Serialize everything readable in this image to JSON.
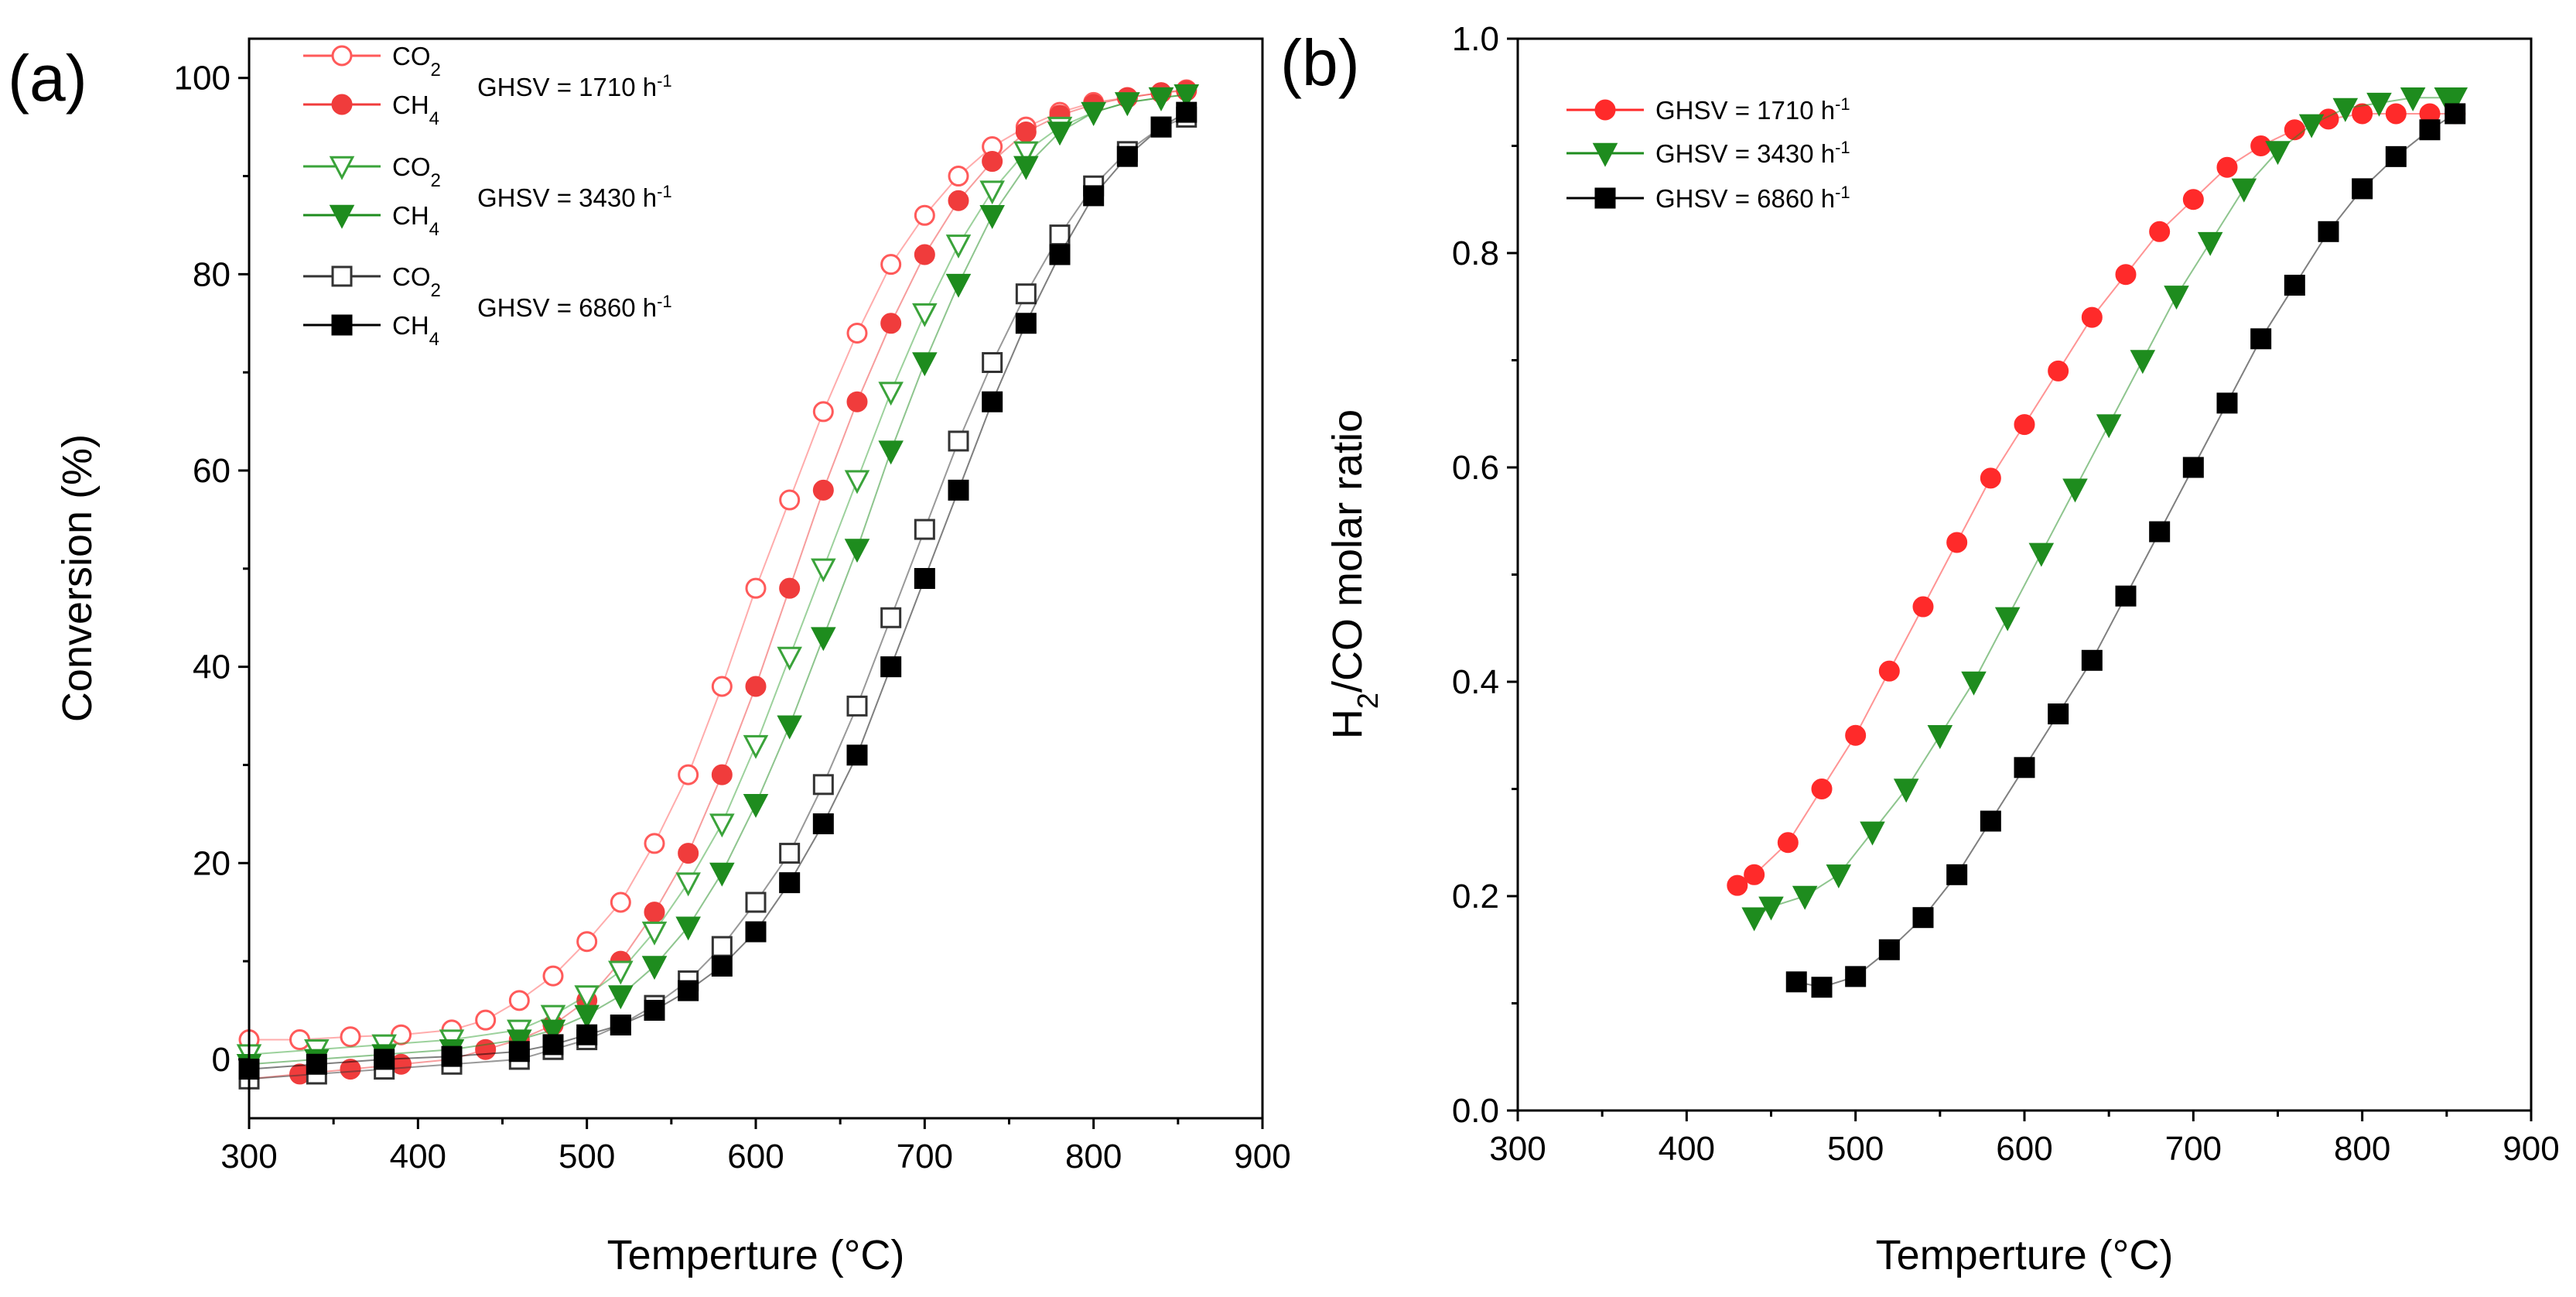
{
  "chart_data": [
    {
      "type": "scatter",
      "panel_label": "(a)",
      "xlabel": "Temperture (°C)",
      "ylabel": "Conversion (%)",
      "xlim": [
        300,
        900
      ],
      "ylim": [
        -6,
        104
      ],
      "xticks": [
        300,
        400,
        500,
        600,
        700,
        800,
        900
      ],
      "yticks": [
        0,
        20,
        40,
        60,
        80,
        100
      ],
      "legend_position": "top-left",
      "legend_groups": [
        {
          "label": "GHSV = 1710 h",
          "sup": "-1",
          "series": [
            0,
            1
          ]
        },
        {
          "label": "GHSV = 3430 h",
          "sup": "-1",
          "series": [
            2,
            3
          ]
        },
        {
          "label": "GHSV = 6860 h",
          "sup": "-1",
          "series": [
            4,
            5
          ]
        }
      ],
      "series": [
        {
          "name": "CO",
          "sub": "2",
          "color": "#ff5a5a",
          "marker": "circle",
          "filled": false,
          "x": [
            300,
            330,
            360,
            390,
            420,
            440,
            460,
            480,
            500,
            520,
            540,
            560,
            580,
            600,
            620,
            640,
            660,
            680,
            700,
            720,
            740,
            760,
            780,
            800,
            820,
            840,
            855
          ],
          "y": [
            2,
            2,
            2.3,
            2.5,
            3,
            4,
            6,
            8.5,
            12,
            16,
            22,
            29,
            38,
            48,
            57,
            66,
            74,
            81,
            86,
            90,
            93,
            95,
            96.5,
            97.5,
            98,
            98.5,
            98.8
          ]
        },
        {
          "name": "CH",
          "sub": "4",
          "color": "#f03c3c",
          "marker": "circle",
          "filled": true,
          "x": [
            300,
            330,
            360,
            390,
            420,
            440,
            460,
            480,
            500,
            520,
            540,
            560,
            580,
            600,
            620,
            640,
            660,
            680,
            700,
            720,
            740,
            760,
            780,
            800,
            820,
            840,
            855
          ],
          "y": [
            -2,
            -1.5,
            -1,
            -0.5,
            0,
            1,
            2,
            3.5,
            6,
            10,
            15,
            21,
            29,
            38,
            48,
            58,
            67,
            75,
            82,
            87.5,
            91.5,
            94.5,
            96.2,
            97.3,
            98,
            98.5,
            98.7
          ]
        },
        {
          "name": "CO",
          "sub": "2",
          "color": "#3aa33a",
          "marker": "triangle-down",
          "filled": false,
          "x": [
            300,
            340,
            380,
            420,
            460,
            480,
            500,
            520,
            540,
            560,
            580,
            600,
            620,
            640,
            660,
            680,
            700,
            720,
            740,
            760,
            780,
            800,
            820,
            840,
            855
          ],
          "y": [
            0.5,
            1,
            1.5,
            2,
            3,
            4.5,
            6.5,
            9,
            13,
            18,
            24,
            32,
            41,
            50,
            59,
            68,
            76,
            83,
            88.5,
            92.5,
            95,
            96.5,
            97.5,
            98,
            98.3
          ]
        },
        {
          "name": "CH",
          "sub": "4",
          "color": "#1e8c1e",
          "marker": "triangle-down",
          "filled": true,
          "x": [
            300,
            340,
            380,
            420,
            460,
            480,
            500,
            520,
            540,
            560,
            580,
            600,
            620,
            640,
            660,
            680,
            700,
            720,
            740,
            760,
            780,
            800,
            820,
            840,
            855
          ],
          "y": [
            -0.5,
            0,
            0.5,
            1,
            2,
            3,
            4.5,
            6.5,
            9.5,
            13.5,
            19,
            26,
            34,
            43,
            52,
            62,
            71,
            79,
            86,
            91,
            94.5,
            96.5,
            97.5,
            98,
            98.3
          ]
        },
        {
          "name": "CO",
          "sub": "2",
          "color": "#333333",
          "marker": "square",
          "filled": false,
          "x": [
            300,
            340,
            380,
            420,
            460,
            480,
            500,
            520,
            540,
            560,
            580,
            600,
            620,
            640,
            660,
            680,
            700,
            720,
            740,
            760,
            780,
            800,
            820,
            840,
            855
          ],
          "y": [
            -2,
            -1.5,
            -1,
            -0.5,
            0,
            1,
            2,
            3.5,
            5.5,
            8,
            11.5,
            16,
            21,
            28,
            36,
            45,
            54,
            63,
            71,
            78,
            84,
            89,
            92.5,
            95,
            96
          ]
        },
        {
          "name": "CH",
          "sub": "4",
          "color": "#000000",
          "marker": "square",
          "filled": true,
          "x": [
            300,
            340,
            380,
            420,
            460,
            480,
            500,
            520,
            540,
            560,
            580,
            600,
            620,
            640,
            660,
            680,
            700,
            720,
            740,
            760,
            780,
            800,
            820,
            840,
            855
          ],
          "y": [
            -1,
            -0.5,
            0,
            0.3,
            0.8,
            1.5,
            2.5,
            3.5,
            5,
            7,
            9.5,
            13,
            18,
            24,
            31,
            40,
            49,
            58,
            67,
            75,
            82,
            88,
            92,
            95,
            96.5
          ]
        }
      ]
    },
    {
      "type": "scatter",
      "panel_label": "(b)",
      "xlabel": "Temperture (°C)",
      "ylabel": "H2/CO molar ratio",
      "ylabel_parts": [
        "H",
        "2",
        "/CO molar ratio"
      ],
      "xlim": [
        300,
        900
      ],
      "ylim": [
        0.0,
        1.0
      ],
      "xticks": [
        300,
        400,
        500,
        600,
        700,
        800,
        900
      ],
      "yticks": [
        "0.0",
        "0.2",
        "0.4",
        "0.6",
        "0.8",
        "1.0"
      ],
      "legend_position": "top-left",
      "series": [
        {
          "name": "GHSV = 1710 h",
          "sup": "-1",
          "color": "#ff2a2a",
          "marker": "circle",
          "filled": true,
          "x": [
            430,
            440,
            460,
            480,
            500,
            520,
            540,
            560,
            580,
            600,
            620,
            640,
            660,
            680,
            700,
            720,
            740,
            760,
            780,
            800,
            820,
            840,
            855
          ],
          "y": [
            0.21,
            0.22,
            0.25,
            0.3,
            0.35,
            0.41,
            0.47,
            0.53,
            0.59,
            0.64,
            0.69,
            0.74,
            0.78,
            0.82,
            0.85,
            0.88,
            0.9,
            0.915,
            0.925,
            0.93,
            0.93,
            0.93,
            0.93
          ]
        },
        {
          "name": "GHSV = 3430 h",
          "sup": "-1",
          "color": "#1e8c1e",
          "marker": "triangle-down",
          "filled": true,
          "x": [
            440,
            450,
            470,
            490,
            510,
            530,
            550,
            570,
            590,
            610,
            630,
            650,
            670,
            690,
            710,
            730,
            750,
            770,
            790,
            810,
            830,
            850,
            855
          ],
          "y": [
            0.18,
            0.19,
            0.2,
            0.22,
            0.26,
            0.3,
            0.35,
            0.4,
            0.46,
            0.52,
            0.58,
            0.64,
            0.7,
            0.76,
            0.81,
            0.86,
            0.895,
            0.92,
            0.935,
            0.94,
            0.945,
            0.945,
            0.945
          ]
        },
        {
          "name": "GHSV = 6860 h",
          "sup": "-1",
          "color": "#000000",
          "marker": "square",
          "filled": true,
          "x": [
            465,
            480,
            500,
            520,
            540,
            560,
            580,
            600,
            620,
            640,
            660,
            680,
            700,
            720,
            740,
            760,
            780,
            800,
            820,
            840,
            855
          ],
          "y": [
            0.12,
            0.115,
            0.125,
            0.15,
            0.18,
            0.22,
            0.27,
            0.32,
            0.37,
            0.42,
            0.48,
            0.54,
            0.6,
            0.66,
            0.72,
            0.77,
            0.82,
            0.86,
            0.89,
            0.915,
            0.93
          ]
        }
      ]
    }
  ]
}
